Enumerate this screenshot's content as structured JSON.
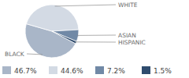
{
  "chart_data": {
    "type": "pie",
    "categories": [
      "BLACK",
      "WHITE",
      "ASIAN",
      "HISPANIC"
    ],
    "values": [
      46.7,
      44.6,
      7.2,
      1.5
    ],
    "value_labels": [
      "46.7%",
      "44.6%",
      "7.2%",
      "1.5%"
    ],
    "colors": [
      "#a9b6c8",
      "#d3dae4",
      "#7189a6",
      "#2f4c6e"
    ],
    "legend": "bottom"
  }
}
